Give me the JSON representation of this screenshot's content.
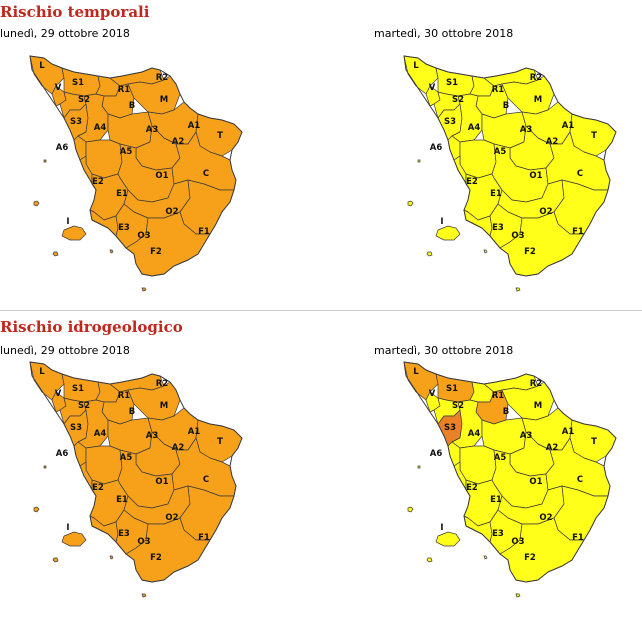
{
  "sections": [
    {
      "title": "Rischio temporali",
      "maps": [
        {
          "date": "lunedì, 29 ottobre 2018",
          "default_level": "orange",
          "overrides": {}
        },
        {
          "date": "martedì, 30 ottobre 2018",
          "default_level": "yellow",
          "overrides": {}
        }
      ]
    },
    {
      "title": "Rischio idrogeologico",
      "maps": [
        {
          "date": "lunedì, 29 ottobre 2018",
          "default_level": "orange",
          "overrides": {}
        },
        {
          "date": "martedì, 30 ottobre 2018",
          "default_level": "yellow",
          "overrides": {
            "L": "orange",
            "S1": "orange",
            "S3": "darkorange",
            "B": "orange"
          }
        }
      ]
    }
  ],
  "colors": {
    "orange": "#f7a11a",
    "yellow": "#ffff1a",
    "darkorange": "#ea8126",
    "border": "#3a3a3a"
  },
  "zone_labels": [
    "L",
    "V",
    "S1",
    "S2",
    "S3",
    "R1",
    "R2",
    "B",
    "M",
    "A4",
    "A3",
    "A1",
    "A6",
    "A5",
    "A2",
    "T",
    "O1",
    "C",
    "E2",
    "E1",
    "O2",
    "F1",
    "E3",
    "O3",
    "F2",
    "I"
  ]
}
